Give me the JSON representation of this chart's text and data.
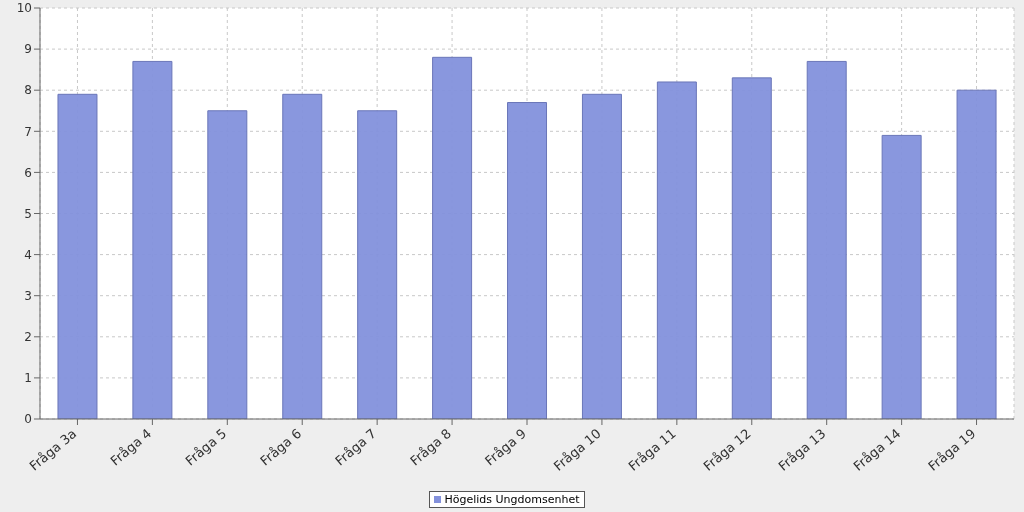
{
  "chart_data": {
    "type": "bar",
    "categories": [
      "Fråga 3a",
      "Fråga 4",
      "Fråga 5",
      "Fråga 6",
      "Fråga 7",
      "Fråga 8",
      "Fråga 9",
      "Fråga 10",
      "Fråga 11",
      "Fråga 12",
      "Fråga 13",
      "Fråga 14",
      "Fråga 19"
    ],
    "series": [
      {
        "name": "Högelids Ungdomsenhet",
        "color": "#8391dc",
        "values": [
          7.9,
          8.7,
          7.5,
          7.9,
          7.5,
          8.8,
          7.7,
          7.9,
          8.2,
          8.3,
          8.7,
          6.9,
          8.0
        ]
      }
    ],
    "ylim": [
      0,
      10
    ],
    "yticks": [
      0,
      1,
      2,
      3,
      4,
      5,
      6,
      7,
      8,
      9,
      10
    ],
    "grid": true,
    "legend": "bottom"
  }
}
